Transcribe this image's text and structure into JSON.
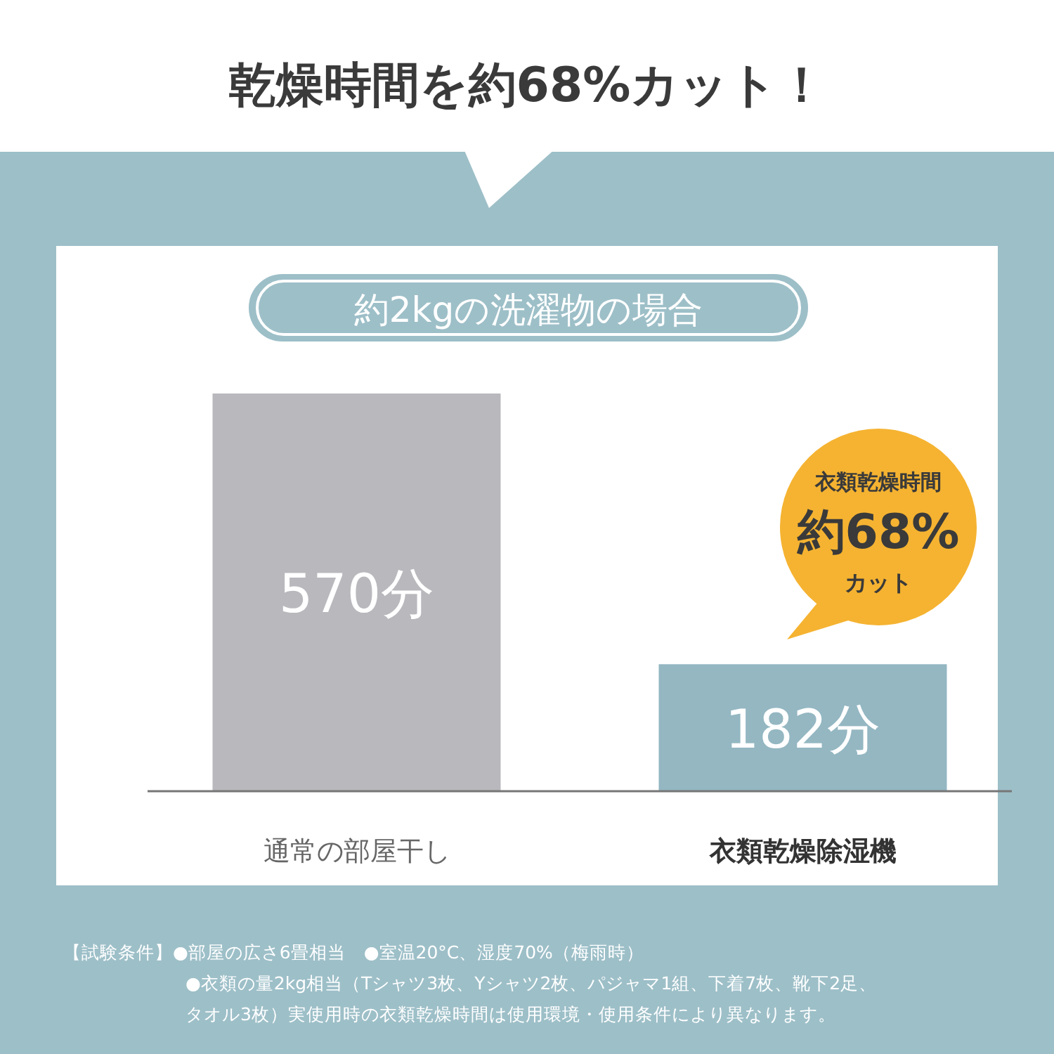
{
  "chart_data": {
    "type": "bar",
    "title": "乾燥時間を約68%カット！",
    "subtitle": "約2kgの洗濯物の場合",
    "categories": [
      "通常の部屋干し",
      "衣類乾燥除湿機"
    ],
    "values": [
      570,
      182
    ],
    "colors": [
      "#b9b8bd",
      "#94b7c2"
    ],
    "value_labels": [
      "570分",
      "182分"
    ],
    "annotations": [
      "衣類乾燥時間",
      "約68%",
      "カット",
      "【試験条件】●部屋の広さ6畳相当　●室温20°C、湿度70%（梅雨時）",
      "●衣類の量2kg相当（Tシャツ3枚、Yシャツ2枚、パジャマ1組、下着7枚、靴下2足、",
      "タオル3枚）実使用時の衣類乾燥時間は使用環境・使用条件により異なります。"
    ]
  }
}
